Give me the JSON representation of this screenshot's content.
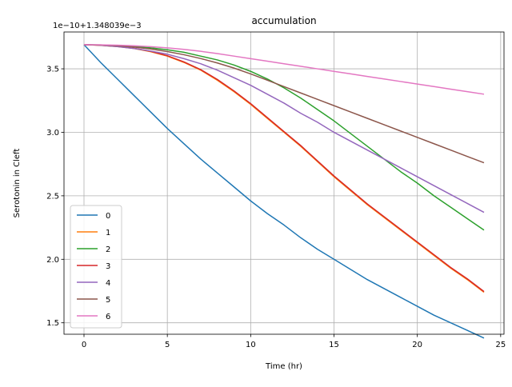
{
  "chart_data": {
    "type": "line",
    "title": "accumulation",
    "xlabel": "Time (hr)",
    "ylabel": "Serotonin in Cleft",
    "y_offset_label": "1e−10+1.348039e−3",
    "xlim": [
      -1.2,
      25.2
    ],
    "ylim": [
      1.41,
      3.79
    ],
    "x_ticks": [
      0,
      5,
      10,
      15,
      20,
      25
    ],
    "x_tick_labels": [
      "0",
      "5",
      "10",
      "15",
      "20",
      "25"
    ],
    "y_ticks": [
      1.5,
      2.0,
      2.5,
      3.0,
      3.5
    ],
    "y_tick_labels": [
      "1.5",
      "2.0",
      "2.5",
      "3.0",
      "3.5"
    ],
    "grid": true,
    "legend_position": "lower-left",
    "x": [
      0,
      1,
      2,
      3,
      4,
      5,
      6,
      7,
      8,
      9,
      10,
      11,
      12,
      13,
      14,
      15,
      16,
      17,
      18,
      19,
      20,
      21,
      22,
      23,
      24
    ],
    "series": [
      {
        "name": "0",
        "color": "#1f77b4",
        "values": [
          3.69,
          3.55,
          3.42,
          3.29,
          3.16,
          3.03,
          2.91,
          2.79,
          2.68,
          2.57,
          2.46,
          2.36,
          2.27,
          2.17,
          2.08,
          2.0,
          1.92,
          1.84,
          1.77,
          1.7,
          1.63,
          1.56,
          1.5,
          1.44,
          1.38
        ]
      },
      {
        "name": "1",
        "color": "#ff7f0e",
        "values": [
          3.69,
          3.685,
          3.675,
          3.66,
          3.635,
          3.6,
          3.55,
          3.49,
          3.41,
          3.32,
          3.22,
          3.11,
          3.0,
          2.89,
          2.77,
          2.65,
          2.54,
          2.43,
          2.33,
          2.23,
          2.13,
          2.03,
          1.93,
          1.84,
          1.74
        ]
      },
      {
        "name": "2",
        "color": "#2ca02c",
        "values": [
          3.69,
          3.688,
          3.683,
          3.675,
          3.665,
          3.65,
          3.63,
          3.6,
          3.57,
          3.53,
          3.48,
          3.42,
          3.35,
          3.27,
          3.18,
          3.09,
          2.99,
          2.89,
          2.79,
          2.69,
          2.6,
          2.5,
          2.41,
          2.32,
          2.23
        ]
      },
      {
        "name": "3",
        "color": "#d62728",
        "values": [
          3.69,
          3.686,
          3.677,
          3.662,
          3.638,
          3.603,
          3.554,
          3.494,
          3.416,
          3.326,
          3.226,
          3.116,
          3.006,
          2.896,
          2.776,
          2.656,
          2.546,
          2.436,
          2.336,
          2.236,
          2.136,
          2.036,
          1.936,
          1.846,
          1.746
        ]
      },
      {
        "name": "4",
        "color": "#9467bd",
        "values": [
          3.69,
          3.685,
          3.675,
          3.66,
          3.64,
          3.615,
          3.58,
          3.54,
          3.49,
          3.43,
          3.37,
          3.3,
          3.23,
          3.15,
          3.08,
          3.0,
          2.93,
          2.86,
          2.79,
          2.72,
          2.65,
          2.58,
          2.51,
          2.44,
          2.37
        ]
      },
      {
        "name": "5",
        "color": "#8c564b",
        "values": [
          3.69,
          3.687,
          3.681,
          3.671,
          3.656,
          3.636,
          3.611,
          3.581,
          3.546,
          3.506,
          3.46,
          3.41,
          3.36,
          3.31,
          3.26,
          3.21,
          3.16,
          3.11,
          3.06,
          3.01,
          2.96,
          2.91,
          2.86,
          2.81,
          2.76
        ]
      },
      {
        "name": "6",
        "color": "#e377c2",
        "values": [
          3.69,
          3.689,
          3.686,
          3.681,
          3.674,
          3.665,
          3.653,
          3.638,
          3.62,
          3.6,
          3.58,
          3.56,
          3.54,
          3.52,
          3.5,
          3.48,
          3.46,
          3.44,
          3.42,
          3.4,
          3.38,
          3.36,
          3.34,
          3.32,
          3.3
        ]
      }
    ]
  }
}
